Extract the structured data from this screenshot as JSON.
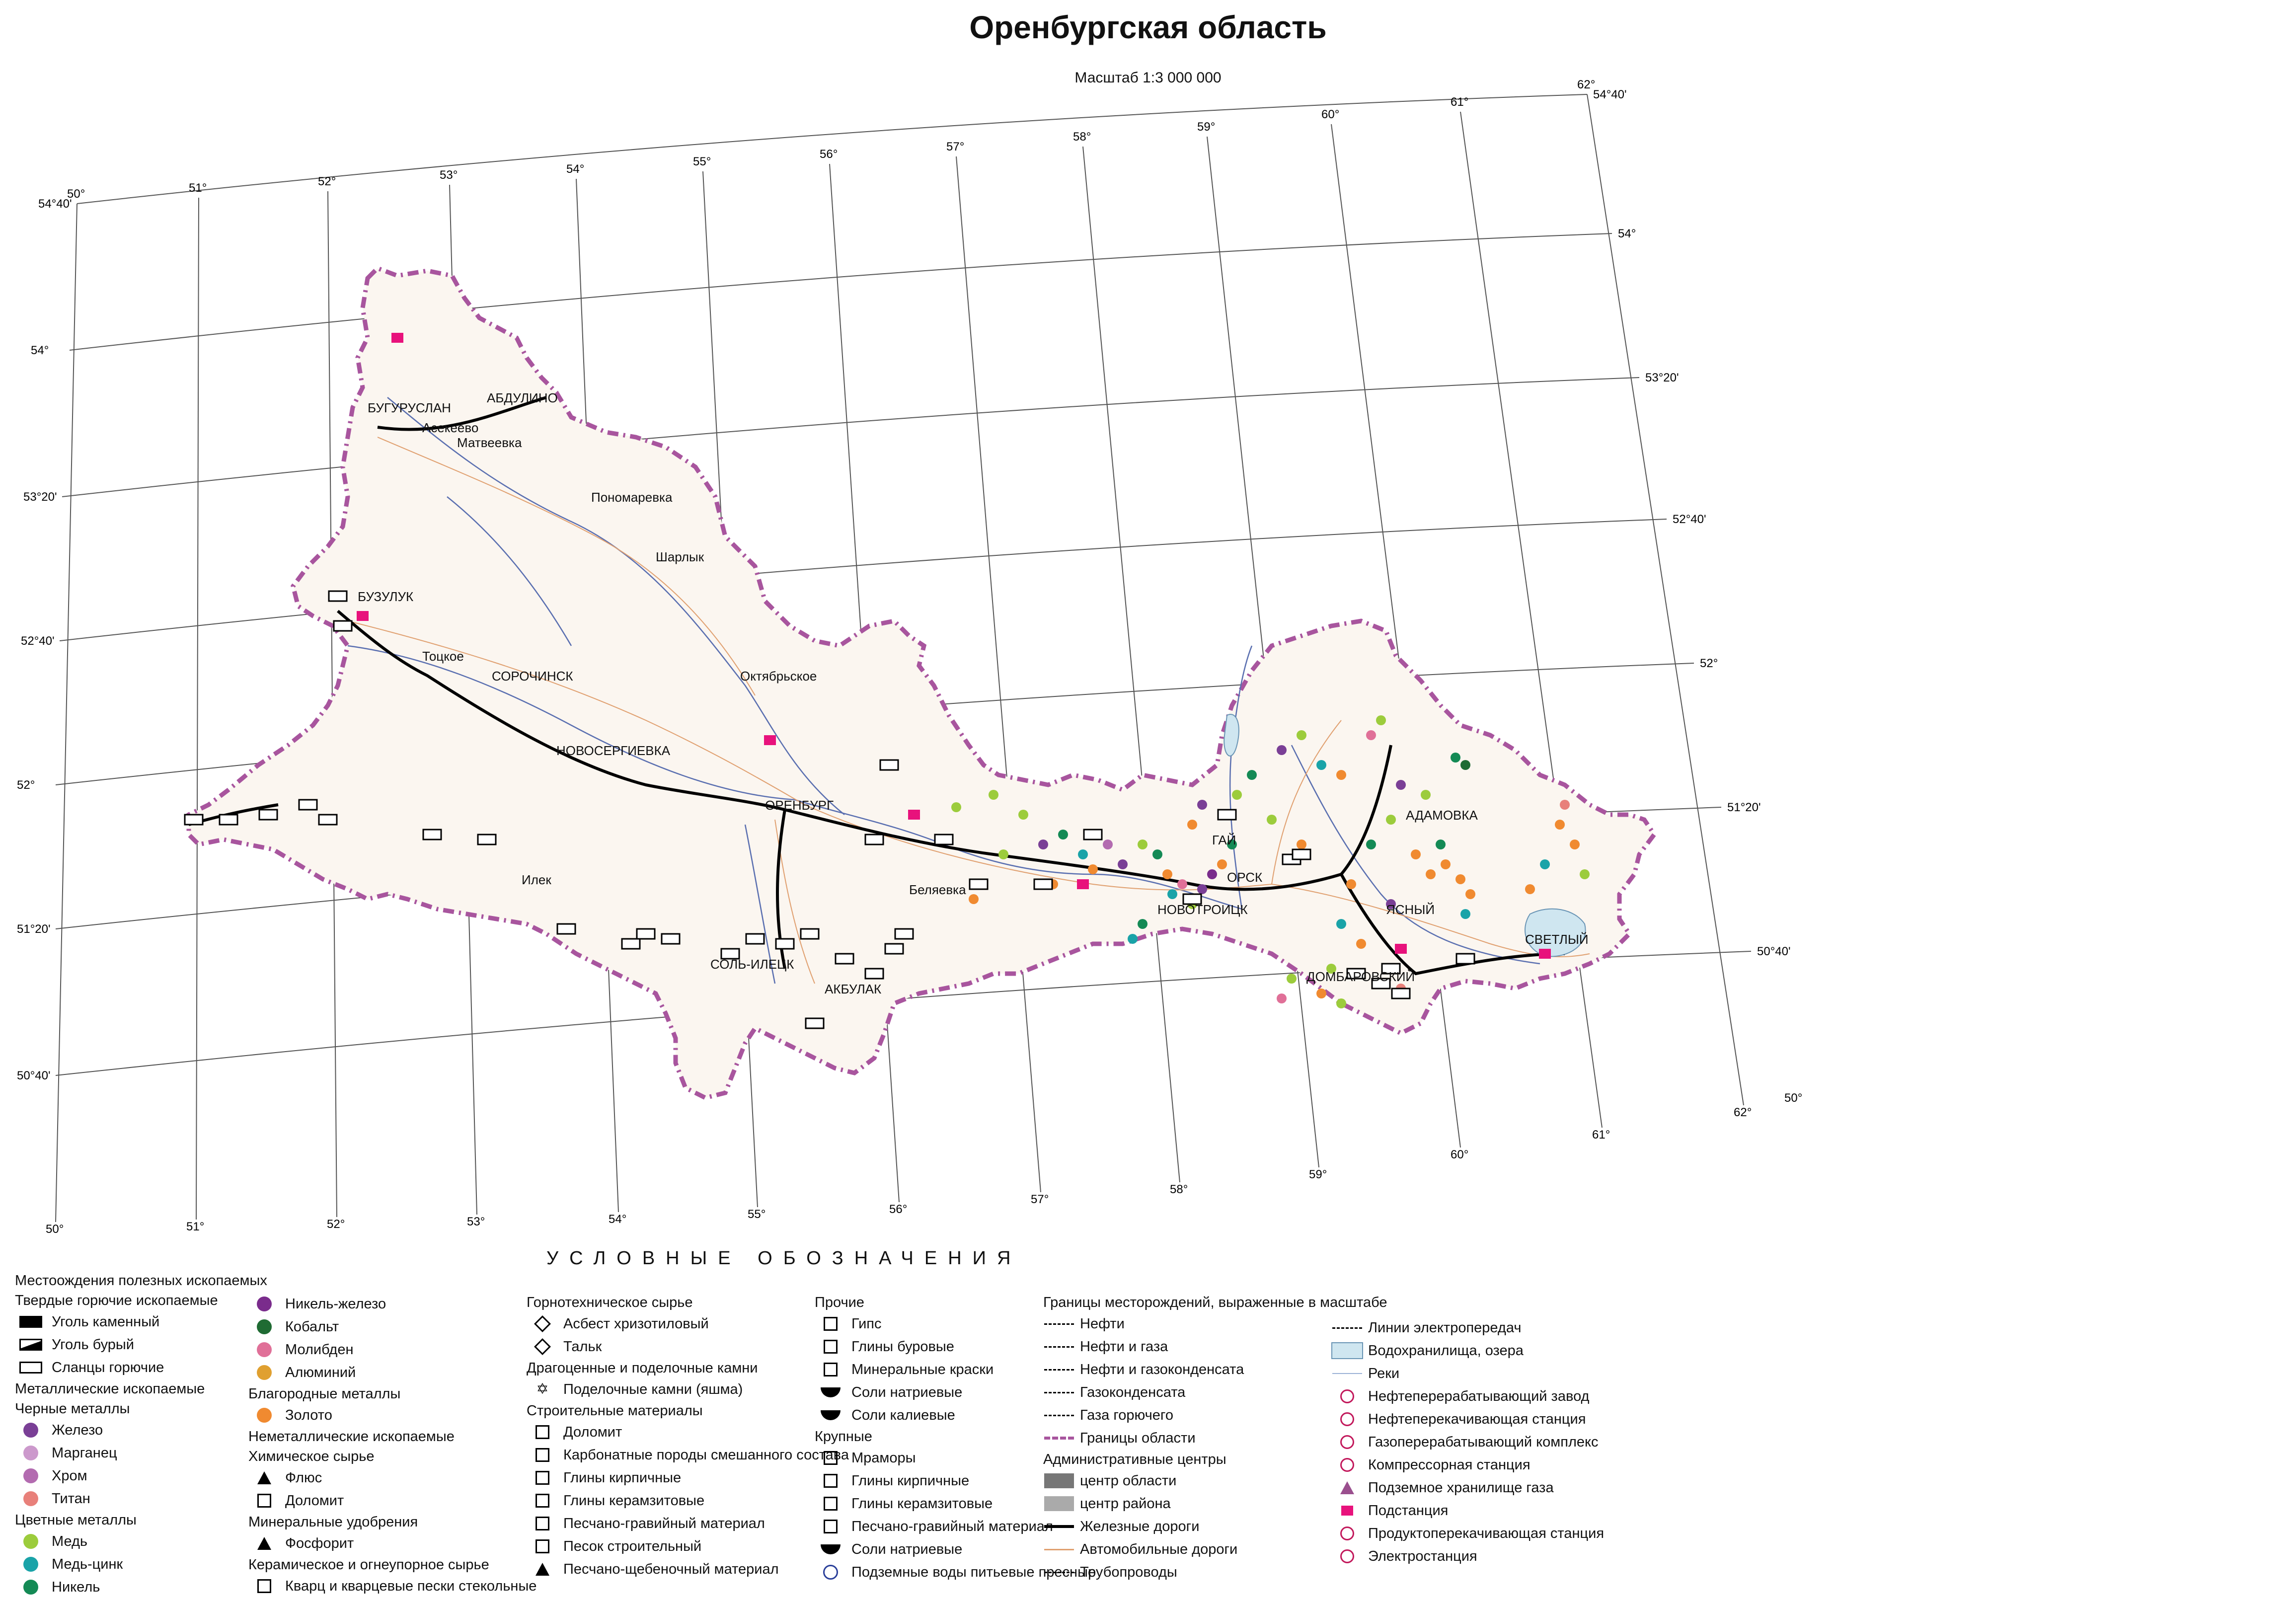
{
  "title": "Оренбургская область",
  "scale": "Масштаб 1:3 000 000",
  "colors": {
    "border": "#a8559e",
    "rivers": "#5a6fb0",
    "roads": "#e0a070",
    "grid": "#333333",
    "substation": "#e8127c",
    "iron": "#7a3f96",
    "manganese": "#cc99cc",
    "chrome": "#b36bb0",
    "titan": "#e8807a",
    "copper": "#9ccc3c",
    "copper_zinc": "#1aa3a8",
    "nickel": "#148a55",
    "nickel_iron": "#7a2c8c",
    "cobalt": "#1f6b33",
    "molybdenum": "#e07098",
    "aluminium": "#e0a030",
    "gold": "#f08a30"
  },
  "longitudes_top": [
    "50°",
    "51°",
    "52°",
    "53°",
    "54°",
    "55°",
    "56°",
    "57°",
    "58°",
    "59°",
    "60°",
    "61°",
    "62°"
  ],
  "longitudes_bottom": [
    "50°",
    "51°",
    "52°",
    "53°",
    "54°",
    "55°",
    "56°",
    "57°",
    "58°",
    "59°",
    "60°",
    "61°",
    "62°"
  ],
  "latitudes_left": [
    "54°40'",
    "54°",
    "53°20'",
    "52°40'",
    "52°",
    "51°20'",
    "50°40'"
  ],
  "latitudes_right": [
    "54°40'",
    "54°",
    "53°20'",
    "52°40'",
    "52°",
    "51°20'",
    "50°40'",
    "50°"
  ],
  "places": [
    {
      "name": "БУГУРУСЛАН"
    },
    {
      "name": "АБДУЛИНО"
    },
    {
      "name": "Асекеево"
    },
    {
      "name": "Матвеевка"
    },
    {
      "name": "Пономаревка"
    },
    {
      "name": "Шарлык"
    },
    {
      "name": "БУЗУЛУК"
    },
    {
      "name": "Тоцкое"
    },
    {
      "name": "СОРОЧИНСК"
    },
    {
      "name": "Октябрьское"
    },
    {
      "name": "НОВОСЕРГИЕВКА"
    },
    {
      "name": "ОРЕНБУРГ"
    },
    {
      "name": "Илек"
    },
    {
      "name": "Беляевка"
    },
    {
      "name": "СОЛЬ-ИЛЕЦК"
    },
    {
      "name": "АКБУЛАК"
    },
    {
      "name": "ГАЙ"
    },
    {
      "name": "ОРСК"
    },
    {
      "name": "НОВОТРОИЦК"
    },
    {
      "name": "АДАМОВКА"
    },
    {
      "name": "ЯСНЫЙ"
    },
    {
      "name": "ДОМБАРОВСКИЙ"
    },
    {
      "name": "СВЕТЛЫЙ"
    }
  ],
  "legend": {
    "heading": "УСЛОВНЫЕ   ОБОЗНАЧЕНИЯ",
    "col1": [
      {
        "t": "Местоождения полезных ископаемых",
        "k": "hdr"
      },
      {
        "t": "Твердые горючие ископаемые",
        "k": "hdr"
      },
      {
        "t": "Уголь каменный",
        "k": "coal"
      },
      {
        "t": "Уголь бурый",
        "k": "brown"
      },
      {
        "t": "Сланцы горючие",
        "k": "shale"
      },
      {
        "t": "Металлические ископаемые",
        "k": "hdr"
      },
      {
        "t": "Черные металлы",
        "k": "hdr"
      },
      {
        "t": "Железо",
        "k": "dot",
        "c": "#7a3f96"
      },
      {
        "t": "Марганец",
        "k": "dot",
        "c": "#cc99cc"
      },
      {
        "t": "Хром",
        "k": "dot",
        "c": "#b36bb0"
      },
      {
        "t": "Титан",
        "k": "dot",
        "c": "#e8807a"
      },
      {
        "t": "Цветные металлы",
        "k": "hdr"
      },
      {
        "t": "Медь",
        "k": "dot",
        "c": "#9ccc3c"
      },
      {
        "t": "Медь-цинк",
        "k": "dot",
        "c": "#1aa3a8"
      },
      {
        "t": "Никель",
        "k": "dot",
        "c": "#148a55"
      }
    ],
    "col2": [
      {
        "t": "Никель-железо",
        "k": "dot",
        "c": "#7a2c8c"
      },
      {
        "t": "Кобальт",
        "k": "dot",
        "c": "#1f6b33"
      },
      {
        "t": "Молибден",
        "k": "dot",
        "c": "#e07098"
      },
      {
        "t": "Алюминий",
        "k": "dot",
        "c": "#e0a030"
      },
      {
        "t": "Благородные металлы",
        "k": "hdr"
      },
      {
        "t": "Золото",
        "k": "dot",
        "c": "#f08a30"
      },
      {
        "t": "Неметаллические ископаемые",
        "k": "hdr"
      },
      {
        "t": "Химическое сырье",
        "k": "hdr"
      },
      {
        "t": "Флюс",
        "k": "tri"
      },
      {
        "t": "Доломит",
        "k": "sq"
      },
      {
        "t": "Минеральные удобрения",
        "k": "hdr"
      },
      {
        "t": "Фосфорит",
        "k": "tri"
      },
      {
        "t": "Керамическое и огнеупорное сырье",
        "k": "hdr"
      },
      {
        "t": "Кварц и кварцевые пески стекольные",
        "k": "sq"
      }
    ],
    "col3": [
      {
        "t": "Горнотехническое сырье",
        "k": "hdr"
      },
      {
        "t": "Асбест хризотиловый",
        "k": "diamond"
      },
      {
        "t": "Тальк",
        "k": "diamond"
      },
      {
        "t": "Драгоценные и поделочные камни",
        "k": "hdr"
      },
      {
        "t": "Поделочные камни (яшма)",
        "k": "star"
      },
      {
        "t": "Строительные материалы",
        "k": "hdr"
      },
      {
        "t": "Доломит",
        "k": "sq"
      },
      {
        "t": "Карбонатные породы смешанного состава",
        "k": "sq"
      },
      {
        "t": "Глины кирпичные",
        "k": "sq"
      },
      {
        "t": "Глины керамзитовые",
        "k": "sq"
      },
      {
        "t": "Песчано-гравийный материал",
        "k": "sq"
      },
      {
        "t": "Песок строительный",
        "k": "sq"
      },
      {
        "t": "Песчано-щебеночный материал",
        "k": "tri"
      }
    ],
    "col4": [
      {
        "t": "Прочие",
        "k": "hdr"
      },
      {
        "t": "Гипс",
        "k": "sq"
      },
      {
        "t": "Глины буровые",
        "k": "sq"
      },
      {
        "t": "Минеральные краски",
        "k": "sq"
      },
      {
        "t": "Соли натриевые",
        "k": "bowl"
      },
      {
        "t": "Соли калиевые",
        "k": "bowl"
      },
      {
        "t": "Крупные",
        "k": "hdr"
      },
      {
        "t": "Мраморы",
        "k": "sq"
      },
      {
        "t": "Глины кирпичные",
        "k": "sq"
      },
      {
        "t": "Глины керамзитовые",
        "k": "sq"
      },
      {
        "t": "Песчано-гравийный материал",
        "k": "sq"
      },
      {
        "t": "Соли натриевые",
        "k": "bowl"
      },
      {
        "t": "Подземные воды питьевые пресные",
        "k": "circ"
      }
    ],
    "col5": [
      {
        "t": "Границы месторождений, выраженные в масштабе",
        "k": "hdr"
      },
      {
        "t": "Нефти",
        "k": "line"
      },
      {
        "t": "Нефти и газа",
        "k": "line"
      },
      {
        "t": "Нефти и газоконденсата",
        "k": "line"
      },
      {
        "t": "Газоконденсата",
        "k": "line"
      },
      {
        "t": "Газа горючего",
        "k": "line"
      },
      {
        "t": "Границы области",
        "k": "border"
      },
      {
        "t": "Административные центры",
        "k": "hdr"
      },
      {
        "t": "центр области",
        "k": "gray1"
      },
      {
        "t": "центр района",
        "k": "gray2"
      },
      {
        "t": "Железные дороги",
        "k": "rail"
      },
      {
        "t": "Автомобильные дороги",
        "k": "road"
      },
      {
        "t": "Трубопроводы",
        "k": "line"
      }
    ],
    "col6": [
      {
        "t": "Линии электропередач",
        "k": "line"
      },
      {
        "t": "Водохранилища, озера",
        "k": "lake"
      },
      {
        "t": "Реки",
        "k": "river"
      },
      {
        "t": "Нефтеперерабатывающий завод",
        "k": "pink"
      },
      {
        "t": "Нефтеперекачивающая станция",
        "k": "pink"
      },
      {
        "t": "Газоперерабатывающий комплекс",
        "k": "pink"
      },
      {
        "t": "Компрессорная станция",
        "k": "pink"
      },
      {
        "t": "Подземное хранилище газа",
        "k": "ptri"
      },
      {
        "t": "Подстанция",
        "k": "psq"
      },
      {
        "t": "Продуктоперекачивающая станция",
        "k": "pink"
      },
      {
        "t": "Электростанция",
        "k": "pink"
      }
    ]
  }
}
